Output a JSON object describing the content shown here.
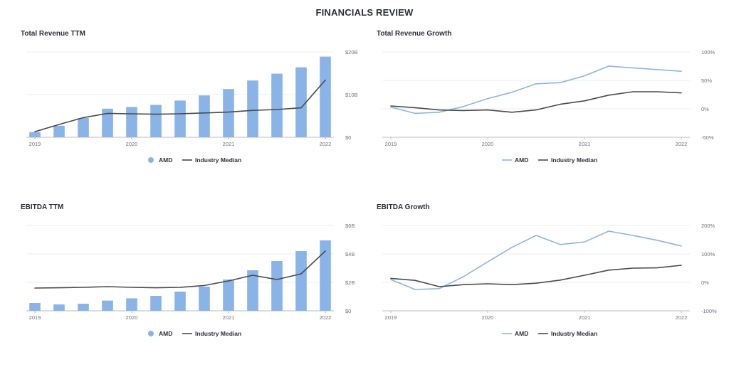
{
  "page": {
    "title": "FINANCIALS REVIEW"
  },
  "legend": {
    "company": "AMD",
    "benchmark": "Industry Median"
  },
  "colors": {
    "company_bar": "#8ab4e8",
    "company_line": "#8ab4e8",
    "median": "#4a4a4a",
    "grid": "#e9ecef",
    "axis": "#b8bec6"
  },
  "x_tick_labels": [
    "2019",
    "2020",
    "2021",
    "2022"
  ],
  "chart_data": [
    {
      "id": "total-revenue-ttm",
      "type": "bar",
      "title": "Total Revenue TTM",
      "ylim": [
        0,
        20
      ],
      "y_ticks": [
        0,
        10,
        20
      ],
      "y_tick_labels": [
        "$0",
        "$10B",
        "$20B"
      ],
      "y_axis_side": "right",
      "x": [
        2019.0,
        2019.25,
        2019.5,
        2019.75,
        2020.0,
        2020.25,
        2020.5,
        2020.75,
        2021.0,
        2021.25,
        2021.5,
        2021.75,
        2022.0
      ],
      "series": [
        {
          "name": "AMD",
          "kind": "bar",
          "values": [
            1.2,
            2.7,
            4.5,
            6.7,
            7.1,
            7.6,
            8.6,
            9.8,
            11.3,
            13.3,
            14.9,
            16.4,
            18.9
          ]
        },
        {
          "name": "Industry Median",
          "kind": "line",
          "values": [
            1.3,
            3.0,
            4.6,
            5.6,
            5.5,
            5.4,
            5.5,
            5.7,
            5.9,
            6.3,
            6.5,
            6.9,
            13.4
          ]
        }
      ]
    },
    {
      "id": "total-revenue-growth",
      "type": "line",
      "title": "Total Revenue Growth",
      "ylim": [
        -50,
        100
      ],
      "y_ticks": [
        -50,
        0,
        50,
        100
      ],
      "y_tick_labels": [
        "-50%",
        "0%",
        "50%",
        "100%"
      ],
      "y_axis_side": "right",
      "x": [
        2019.0,
        2019.25,
        2019.5,
        2019.75,
        2020.0,
        2020.25,
        2020.5,
        2020.75,
        2021.0,
        2021.25,
        2021.5,
        2021.75,
        2022.0
      ],
      "series": [
        {
          "name": "AMD",
          "kind": "line",
          "values": [
            3,
            -8,
            -6,
            4,
            18,
            29,
            44,
            46,
            58,
            75,
            72,
            69,
            66
          ]
        },
        {
          "name": "Industry Median",
          "kind": "line",
          "values": [
            5,
            2,
            -2,
            -3,
            -2,
            -6,
            -2,
            8,
            14,
            24,
            30,
            30,
            28
          ]
        }
      ]
    },
    {
      "id": "ebitda-ttm",
      "type": "bar",
      "title": "EBITDA TTM",
      "ylim": [
        0,
        6
      ],
      "y_ticks": [
        0,
        2,
        4,
        6
      ],
      "y_tick_labels": [
        "$0",
        "$2B",
        "$4B",
        "$6B"
      ],
      "y_axis_side": "right",
      "x": [
        2019.0,
        2019.25,
        2019.5,
        2019.75,
        2020.0,
        2020.25,
        2020.5,
        2020.75,
        2021.0,
        2021.25,
        2021.5,
        2021.75,
        2022.0
      ],
      "series": [
        {
          "name": "AMD",
          "kind": "bar",
          "values": [
            0.55,
            0.45,
            0.5,
            0.72,
            0.88,
            1.05,
            1.35,
            1.7,
            2.2,
            2.85,
            3.5,
            4.2,
            4.95
          ]
        },
        {
          "name": "Industry Median",
          "kind": "line",
          "values": [
            1.6,
            1.62,
            1.65,
            1.7,
            1.65,
            1.62,
            1.65,
            1.78,
            2.1,
            2.5,
            2.2,
            2.6,
            4.2
          ]
        }
      ]
    },
    {
      "id": "ebitda-growth",
      "type": "line",
      "title": "EBITDA Growth",
      "ylim": [
        -100,
        200
      ],
      "y_ticks": [
        -100,
        0,
        100,
        200
      ],
      "y_tick_labels": [
        "-100%",
        "0%",
        "100%",
        "200%"
      ],
      "y_axis_side": "right",
      "x": [
        2019.0,
        2019.25,
        2019.5,
        2019.75,
        2020.0,
        2020.25,
        2020.5,
        2020.75,
        2021.0,
        2021.25,
        2021.5,
        2021.75,
        2022.0
      ],
      "series": [
        {
          "name": "AMD",
          "kind": "line",
          "values": [
            10,
            -25,
            -22,
            20,
            72,
            123,
            165,
            133,
            142,
            180,
            165,
            148,
            128
          ]
        },
        {
          "name": "Industry Median",
          "kind": "line",
          "values": [
            14,
            7,
            -15,
            -8,
            -5,
            -8,
            -3,
            8,
            25,
            43,
            50,
            51,
            60
          ]
        }
      ]
    }
  ]
}
